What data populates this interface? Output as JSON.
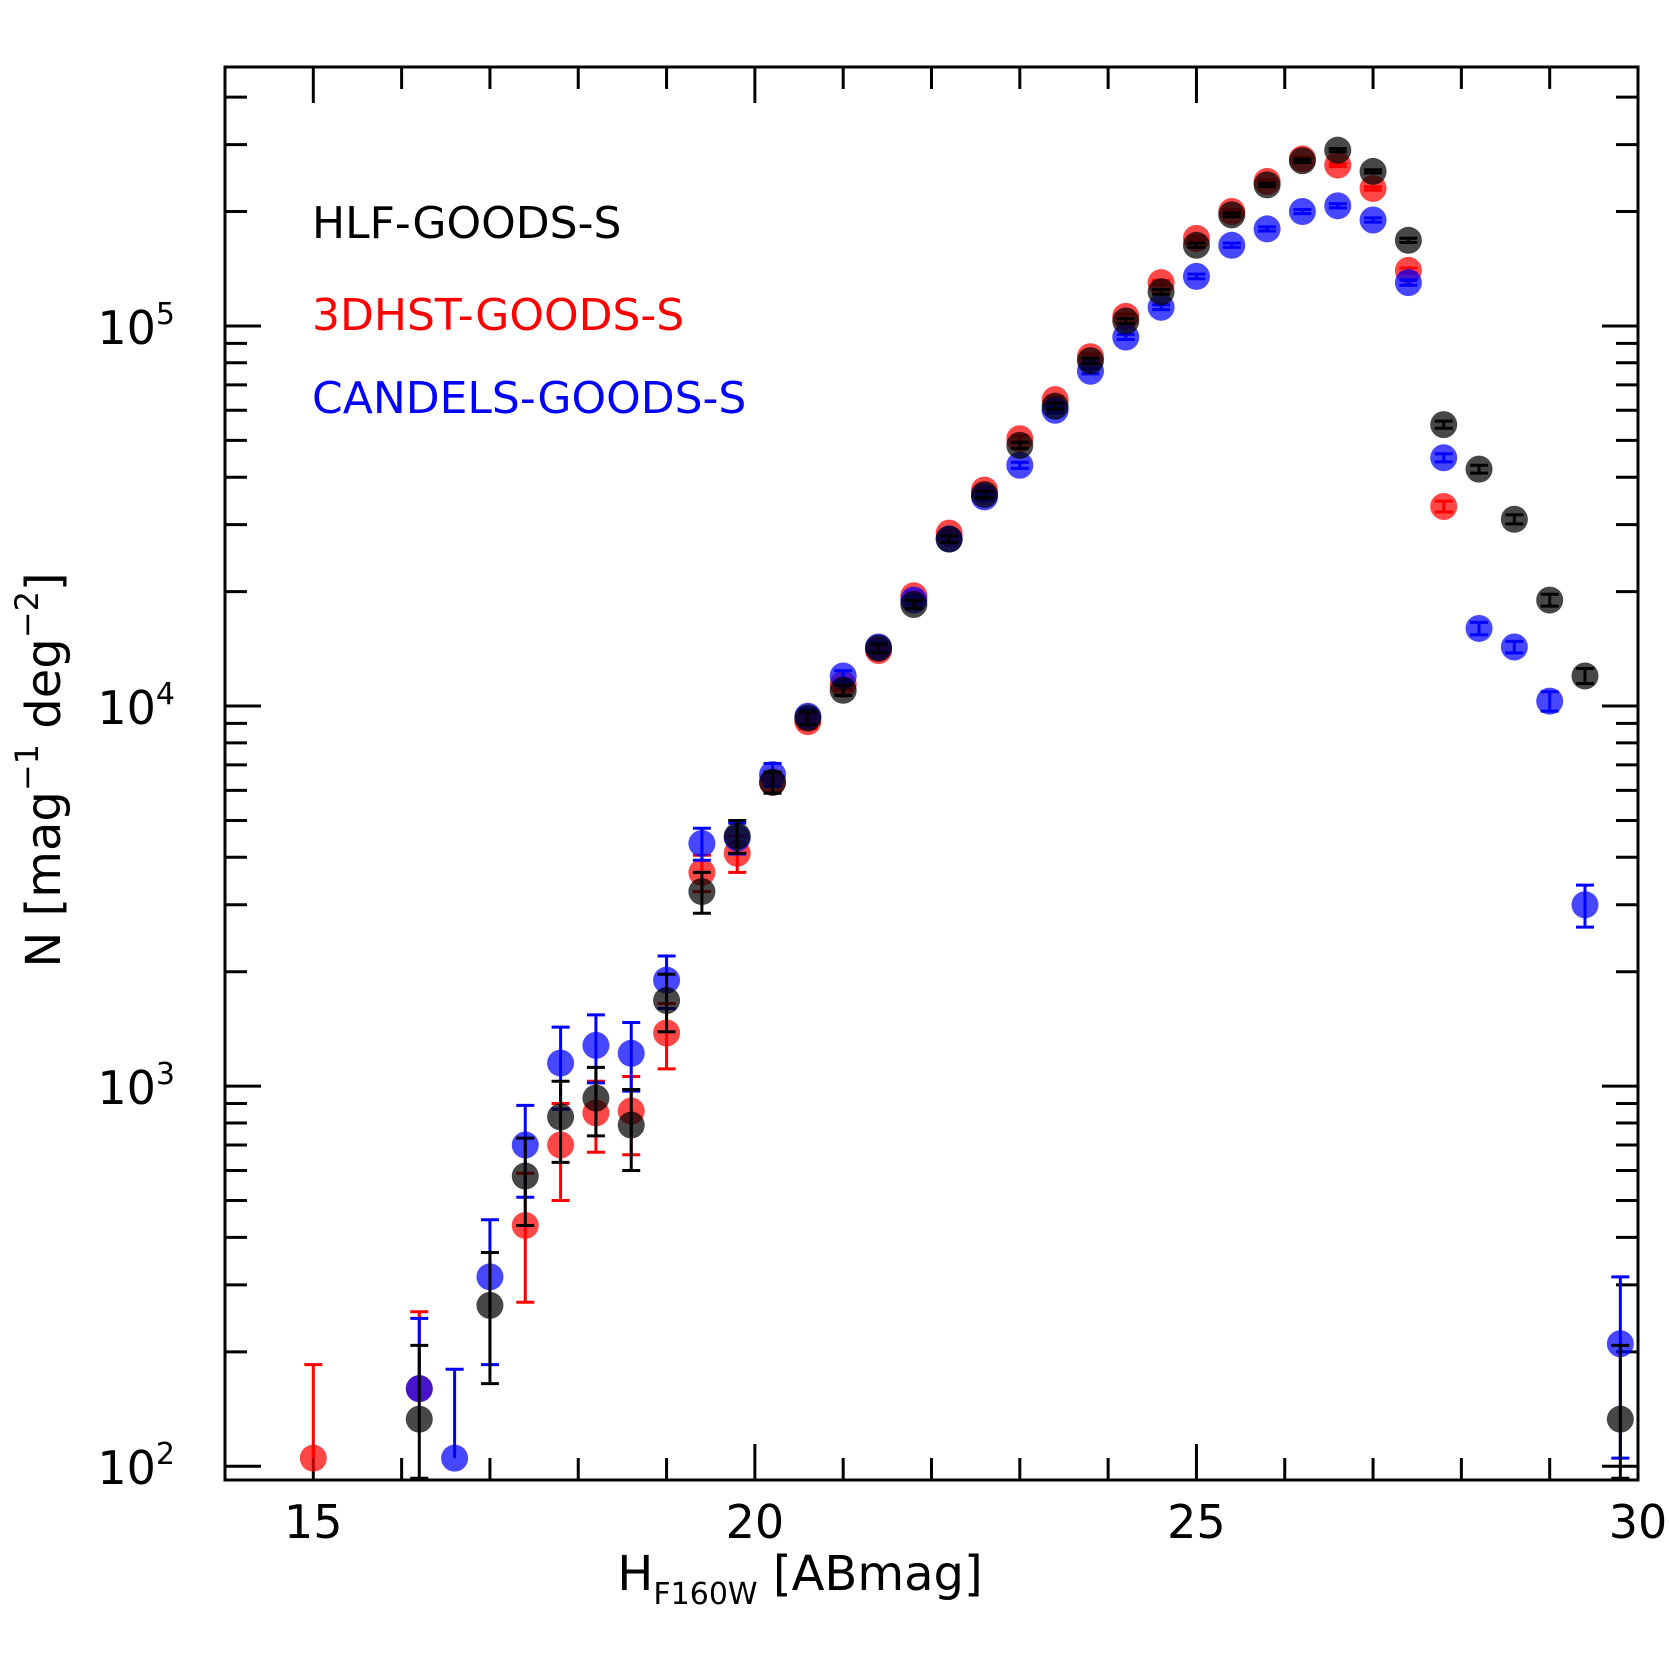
{
  "chart_data": {
    "type": "scatter",
    "title": "",
    "xlabel_main": "H",
    "xlabel_sub": "F160W",
    "xlabel_tail": " [ABmag]",
    "ylabel_parts": [
      "N [mag",
      "−1",
      " deg",
      "−2",
      "]"
    ],
    "xscale": "linear",
    "yscale": "log",
    "xlim": [
      14.0,
      30.0
    ],
    "ylim": [
      92,
      480000
    ],
    "x_ticks": [
      15,
      20,
      25,
      30
    ],
    "x_tick_labels": [
      "15",
      "20",
      "25",
      "30"
    ],
    "y_ticks": [
      100,
      1000,
      10000,
      100000
    ],
    "y_tick_labels": [
      {
        "base": "10",
        "exp": "2"
      },
      {
        "base": "10",
        "exp": "3"
      },
      {
        "base": "10",
        "exp": "4"
      },
      {
        "base": "10",
        "exp": "5"
      }
    ],
    "legend_position": "top-left",
    "series": [
      {
        "name": "3DHST-GOODS-S",
        "color": "#ff0000",
        "x": [
          15.0,
          16.2,
          17.4,
          17.8,
          18.2,
          18.6,
          19.0,
          19.4,
          19.8,
          20.2,
          20.6,
          21.0,
          21.4,
          21.8,
          22.2,
          22.6,
          23.0,
          23.4,
          23.8,
          24.2,
          24.6,
          25.0,
          25.4,
          25.8,
          26.2,
          26.6,
          27.0,
          27.4,
          27.8
        ],
        "y": [
          105,
          160,
          430,
          700,
          850,
          860,
          1380,
          3650,
          4100,
          6300,
          9100,
          11400,
          14000,
          19500,
          28500,
          37000,
          50500,
          64000,
          83000,
          106000,
          130000,
          170000,
          200000,
          240000,
          275000,
          265000,
          230000,
          140000,
          33500
        ],
        "err_lo": [
          0,
          0,
          160,
          200,
          180,
          200,
          270,
          400,
          450,
          400,
          380,
          340,
          360,
          480,
          550,
          700,
          900,
          1100,
          1300,
          1500,
          1700,
          2000,
          2200,
          2400,
          2600,
          2500,
          2400,
          2100,
          1100
        ],
        "err_hi": [
          80,
          95,
          160,
          200,
          180,
          200,
          270,
          400,
          450,
          400,
          380,
          340,
          360,
          480,
          550,
          700,
          900,
          1100,
          1300,
          1500,
          1700,
          2000,
          2200,
          2400,
          2600,
          2500,
          2400,
          2100,
          1100
        ]
      },
      {
        "name": "CANDELS-GOODS-S",
        "color": "#0000ff",
        "x": [
          16.2,
          16.6,
          17.0,
          17.4,
          17.8,
          18.2,
          18.6,
          19.0,
          19.4,
          19.8,
          20.2,
          20.6,
          21.0,
          21.4,
          21.8,
          22.2,
          22.6,
          23.0,
          23.4,
          23.8,
          24.2,
          24.6,
          25.0,
          25.4,
          25.8,
          26.2,
          26.6,
          27.0,
          27.4,
          27.8,
          28.2,
          28.6,
          29.0,
          29.4,
          29.8
        ],
        "y": [
          160,
          105,
          315,
          700,
          1150,
          1280,
          1220,
          1900,
          4350,
          4500,
          6600,
          9400,
          12000,
          14300,
          19000,
          27500,
          35500,
          43000,
          60000,
          76000,
          93500,
          112000,
          135000,
          163000,
          180000,
          200000,
          207000,
          190000,
          130000,
          45000,
          16000,
          14300,
          10300,
          3000,
          210
        ],
        "err_lo": [
          0,
          0,
          130,
          190,
          280,
          260,
          250,
          300,
          420,
          420,
          460,
          420,
          380,
          380,
          460,
          550,
          650,
          800,
          1000,
          1200,
          1400,
          1600,
          1900,
          2100,
          2300,
          2500,
          2600,
          2400,
          2000,
          1100,
          600,
          500,
          600,
          380,
          105
        ],
        "err_hi": [
          85,
          75,
          130,
          190,
          280,
          260,
          250,
          300,
          420,
          420,
          460,
          420,
          380,
          380,
          460,
          550,
          650,
          800,
          1000,
          1200,
          1400,
          1600,
          1900,
          2100,
          2300,
          2500,
          2600,
          2400,
          2000,
          1100,
          600,
          500,
          600,
          380,
          105
        ]
      },
      {
        "name": "HLF-GOODS-S",
        "color": "#000000",
        "x": [
          16.2,
          17.0,
          17.4,
          17.8,
          18.2,
          18.6,
          19.0,
          19.4,
          19.8,
          20.2,
          20.6,
          21.0,
          21.4,
          21.8,
          22.2,
          22.6,
          23.0,
          23.4,
          23.8,
          24.2,
          24.6,
          25.0,
          25.4,
          25.8,
          26.2,
          26.6,
          27.0,
          27.4,
          27.8,
          28.2,
          28.6,
          29.0,
          29.4,
          29.8
        ],
        "y": [
          133,
          265,
          580,
          830,
          930,
          790,
          1680,
          3250,
          4550,
          6300,
          9300,
          11000,
          14200,
          18500,
          27500,
          36000,
          48500,
          61500,
          81000,
          103000,
          123000,
          163000,
          196000,
          235000,
          272000,
          290000,
          255000,
          168000,
          55000,
          42000,
          31000,
          19000,
          12000,
          133
        ],
        "err_lo": [
          40,
          100,
          150,
          200,
          190,
          190,
          290,
          400,
          450,
          400,
          360,
          340,
          360,
          460,
          550,
          700,
          900,
          1100,
          1300,
          1500,
          1700,
          2000,
          2200,
          2400,
          2600,
          2700,
          2500,
          2100,
          1200,
          1000,
          850,
          680,
          550,
          40
        ],
        "err_hi": [
          75,
          100,
          150,
          200,
          190,
          190,
          290,
          400,
          450,
          400,
          360,
          340,
          360,
          460,
          550,
          700,
          900,
          1100,
          1300,
          1500,
          1700,
          2000,
          2200,
          2400,
          2600,
          2700,
          2500,
          2100,
          1200,
          1000,
          850,
          680,
          550,
          75
        ]
      }
    ],
    "legend": [
      {
        "label": "HLF-GOODS-S",
        "color": "#000000"
      },
      {
        "label": "3DHST-GOODS-S",
        "color": "#ff0000"
      },
      {
        "label": "CANDELS-GOODS-S",
        "color": "#0000ff"
      }
    ]
  }
}
